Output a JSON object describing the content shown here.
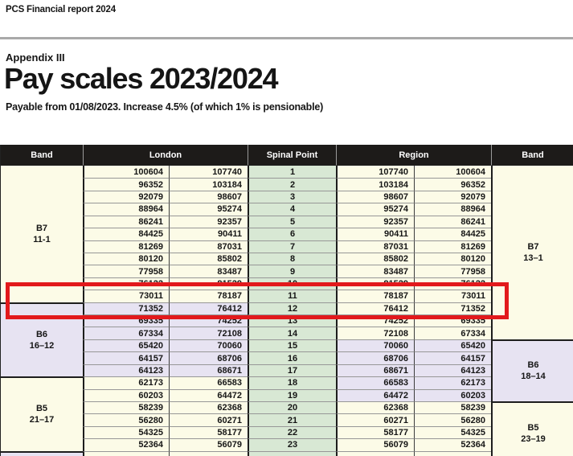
{
  "page": {
    "top_header": "PCS Financial report 2024",
    "appendix": "Appendix III",
    "title": "Pay scales 2023/2024",
    "subtitle": "Payable from 01/08/2023. Increase 4.5% (of which 1% is pensionable)"
  },
  "table": {
    "columns": {
      "band_left": "Band",
      "london": "London",
      "spinal_point": "Spinal Point",
      "region": "Region",
      "band_right": "Band"
    },
    "left_bands": [
      {
        "label": "B7",
        "range": "11-1",
        "from": 1,
        "to": 11,
        "shade": "cream"
      },
      {
        "label": "B6",
        "range": "16–12",
        "from": 12,
        "to": 17,
        "shade": "lavender"
      },
      {
        "label": "B5",
        "range": "21–17",
        "from": 18,
        "to": 23,
        "shade": "cream"
      },
      {
        "label": "",
        "range": "",
        "from": 24,
        "to": 24,
        "shade": "lavender"
      }
    ],
    "right_bands": [
      {
        "label": "B7",
        "range": "13–1",
        "from": 1,
        "to": 14,
        "shade": "cream"
      },
      {
        "label": "B6",
        "range": "18–14",
        "from": 15,
        "to": 19,
        "shade": "lavender"
      },
      {
        "label": "B5",
        "range": "23–19",
        "from": 20,
        "to": 24,
        "shade": "cream"
      }
    ],
    "rows": [
      {
        "sp": "1",
        "london": [
          "100604",
          "107740"
        ],
        "region": [
          "107740",
          "100604"
        ]
      },
      {
        "sp": "2",
        "london": [
          "96352",
          "103184"
        ],
        "region": [
          "103184",
          "96352"
        ]
      },
      {
        "sp": "3",
        "london": [
          "92079",
          "98607"
        ],
        "region": [
          "98607",
          "92079"
        ]
      },
      {
        "sp": "4",
        "london": [
          "88964",
          "95274"
        ],
        "region": [
          "95274",
          "88964"
        ]
      },
      {
        "sp": "5",
        "london": [
          "86241",
          "92357"
        ],
        "region": [
          "92357",
          "86241"
        ]
      },
      {
        "sp": "6",
        "london": [
          "84425",
          "90411"
        ],
        "region": [
          "90411",
          "84425"
        ]
      },
      {
        "sp": "7",
        "london": [
          "81269",
          "87031"
        ],
        "region": [
          "87031",
          "81269"
        ]
      },
      {
        "sp": "8",
        "london": [
          "80120",
          "85802"
        ],
        "region": [
          "85802",
          "80120"
        ]
      },
      {
        "sp": "9",
        "london": [
          "77958",
          "83487"
        ],
        "region": [
          "83487",
          "77958"
        ]
      },
      {
        "sp": "10",
        "london": [
          "76122",
          "81529"
        ],
        "region": [
          "81529",
          "76122"
        ]
      },
      {
        "sp": "11",
        "london": [
          "73011",
          "78187"
        ],
        "region": [
          "78187",
          "73011"
        ]
      },
      {
        "sp": "12",
        "london": [
          "71352",
          "76412"
        ],
        "region": [
          "76412",
          "71352"
        ]
      },
      {
        "sp": "13",
        "london": [
          "69335",
          "74252"
        ],
        "region": [
          "74252",
          "69335"
        ]
      },
      {
        "sp": "14",
        "london": [
          "67334",
          "72108"
        ],
        "region": [
          "72108",
          "67334"
        ]
      },
      {
        "sp": "15",
        "london": [
          "65420",
          "70060"
        ],
        "region": [
          "70060",
          "65420"
        ]
      },
      {
        "sp": "16",
        "london": [
          "64157",
          "68706"
        ],
        "region": [
          "68706",
          "64157"
        ]
      },
      {
        "sp": "17",
        "london": [
          "64123",
          "68671"
        ],
        "region": [
          "68671",
          "64123"
        ]
      },
      {
        "sp": "18",
        "london": [
          "62173",
          "66583"
        ],
        "region": [
          "66583",
          "62173"
        ]
      },
      {
        "sp": "19",
        "london": [
          "60203",
          "64472"
        ],
        "region": [
          "64472",
          "60203"
        ]
      },
      {
        "sp": "20",
        "london": [
          "58239",
          "62368"
        ],
        "region": [
          "62368",
          "58239"
        ]
      },
      {
        "sp": "21",
        "london": [
          "56280",
          "60271"
        ],
        "region": [
          "60271",
          "56280"
        ]
      },
      {
        "sp": "22",
        "london": [
          "54325",
          "58177"
        ],
        "region": [
          "58177",
          "54325"
        ]
      },
      {
        "sp": "23",
        "london": [
          "52364",
          "56079"
        ],
        "region": [
          "56079",
          "52364"
        ]
      }
    ]
  },
  "highlight": {
    "description": "red rectangle drawn over spinal point rows 10 to 13, fully enclosing rows 11 and 12",
    "enclosed_spinal_points": [
      "11",
      "12"
    ],
    "color": "#e2191c"
  },
  "colors": {
    "cream": "#fcfbe7",
    "lavender": "#e7e3f2",
    "spinal_green": "#d8e8d4",
    "header_bg": "#1d1b19",
    "rule_gray": "#a9a9a9"
  }
}
